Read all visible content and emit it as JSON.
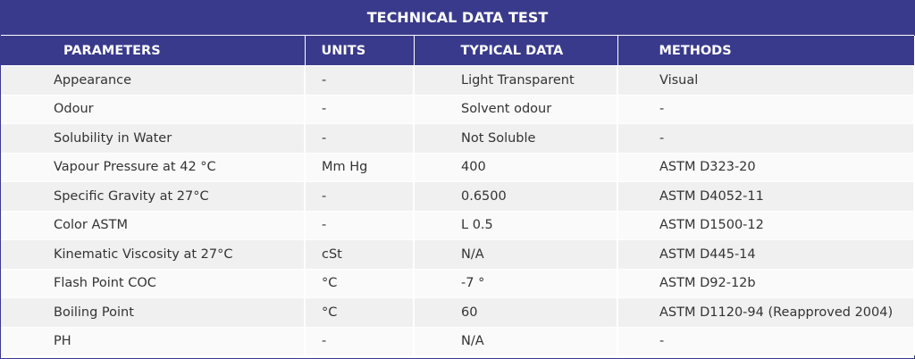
{
  "title": "TECHNICAL DATA TEST",
  "table": {
    "headers": [
      "PARAMETERS",
      "UNITS",
      "TYPICAL DATA",
      "METHODS"
    ],
    "rows": [
      [
        "Appearance",
        "-",
        "Light Transparent",
        "Visual"
      ],
      [
        "Odour",
        "-",
        "Solvent odour",
        "-"
      ],
      [
        "Solubility in Water",
        "-",
        "Not Soluble",
        "-"
      ],
      [
        "Vapour Pressure at 42 °C",
        "Mm Hg",
        "400",
        "ASTM D323-20"
      ],
      [
        "Specific Gravity at 27°C",
        "-",
        "0.6500",
        "ASTM D4052-11"
      ],
      [
        "Color ASTM",
        "-",
        "L 0.5",
        "ASTM D1500-12"
      ],
      [
        "Kinematic Viscosity at 27°C",
        "cSt",
        "N/A",
        "ASTM D445-14"
      ],
      [
        "Flash Point COC",
        "°C",
        "-7 °",
        "ASTM D92-12b"
      ],
      [
        "Boiling Point",
        "°C",
        "60",
        "ASTM D1120-94 (Reapproved 2004)"
      ],
      [
        "PH",
        "-",
        "N/A",
        "-"
      ]
    ]
  }
}
